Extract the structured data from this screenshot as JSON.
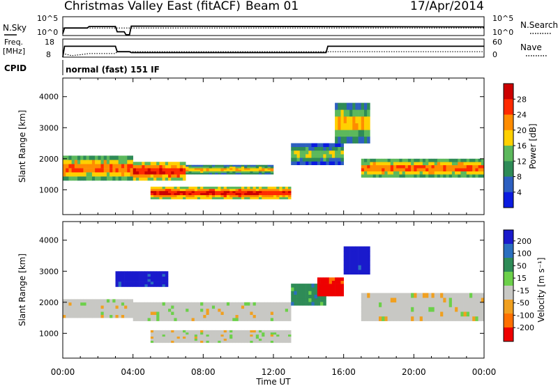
{
  "header": {
    "title": "Christmas Valley East (fitACF)",
    "beam": "Beam 01",
    "date": "17/Apr/2014"
  },
  "noise_panel": {
    "left_label": "N.Sky",
    "right_label": "N.Search",
    "ticks": [
      "10^5",
      "10^0"
    ],
    "right_ticks": [
      "10^5",
      "10^0"
    ]
  },
  "freq_panel": {
    "left_label_1": "Freq.",
    "left_label_2": "[MHz]",
    "left_ticks": [
      "18",
      "8"
    ],
    "right_label": "Nave",
    "right_ticks": [
      "60",
      "0"
    ]
  },
  "cpid": {
    "label": "CPID",
    "mode": "normal (fast) 151 IF"
  },
  "chart_data": [
    {
      "type": "line",
      "name": "noise",
      "series": [
        {
          "name": "N.Sky",
          "x_hours": [
            0,
            0.1,
            1.4,
            1.5,
            3.0,
            3.1,
            3.5,
            3.6,
            3.8,
            3.9,
            24
          ],
          "values": [
            0.5,
            2.0,
            2.0,
            2.4,
            2.4,
            1.0,
            1.0,
            0.2,
            0.2,
            2.5,
            2.3
          ]
        },
        {
          "name": "N.Search",
          "x_hours": [
            0,
            24
          ],
          "values": [
            2.0,
            2.0
          ]
        }
      ],
      "ylim": [
        0,
        5
      ]
    },
    {
      "type": "line",
      "name": "frequency-nave",
      "series": [
        {
          "name": "Freq.",
          "x_hours": [
            0,
            0.1,
            3.0,
            3.1,
            3.8,
            3.9,
            15.0,
            15.1,
            24
          ],
          "values": [
            8,
            14,
            14,
            11,
            11,
            10.5,
            10.5,
            14,
            14
          ]
        },
        {
          "name": "Nave",
          "x_hours": [
            0,
            0.5,
            1.0,
            1.5,
            3.0,
            3.1,
            24
          ],
          "values": [
            12,
            5,
            8,
            12,
            12,
            18,
            18
          ]
        }
      ],
      "ylim_left": [
        8,
        18
      ],
      "ylim_right": [
        0,
        60
      ]
    },
    {
      "type": "heatmap",
      "name": "power",
      "xlabel": "",
      "ylabel": "Slant Range [km]",
      "xlim": [
        0,
        24
      ],
      "ylim": [
        200,
        4600
      ],
      "yticks": [
        "1000",
        "2000",
        "3000",
        "4000"
      ],
      "colorbar": {
        "label": "Power [dB]",
        "ticks": [
          "4",
          "8",
          "12",
          "16",
          "20",
          "24",
          "28"
        ],
        "colors": [
          "#0b1be0",
          "#2d5fc0",
          "#2e8b57",
          "#5cb85c",
          "#ffd000",
          "#ff8c00",
          "#ff2a00",
          "#cc0000"
        ]
      },
      "bands": [
        {
          "x0": 0,
          "x1": 4,
          "r0": 1300,
          "r1": 2100,
          "level": 24
        },
        {
          "x0": 4,
          "x1": 7,
          "r0": 1300,
          "r1": 1900,
          "level": 28
        },
        {
          "x0": 5,
          "x1": 13,
          "r0": 700,
          "r1": 1100,
          "level": 28
        },
        {
          "x0": 7,
          "x1": 12,
          "r0": 1500,
          "r1": 1800,
          "level": 20
        },
        {
          "x0": 13,
          "x1": 16,
          "r0": 1800,
          "r1": 2500,
          "level": 16
        },
        {
          "x0": 15.5,
          "x1": 17.5,
          "r0": 2500,
          "r1": 3800,
          "level": 20
        },
        {
          "x0": 17,
          "x1": 24,
          "r0": 1400,
          "r1": 2000,
          "level": 24
        }
      ]
    },
    {
      "type": "heatmap",
      "name": "velocity",
      "xlabel": "Time UT",
      "ylabel": "Slant Range [km]",
      "xlim": [
        0,
        24
      ],
      "xticks": [
        "00:00",
        "04:00",
        "08:00",
        "12:00",
        "16:00",
        "20:00",
        "00:00"
      ],
      "ylim": [
        200,
        4600
      ],
      "yticks": [
        "1000",
        "2000",
        "3000",
        "4000"
      ],
      "colorbar": {
        "label": "Velocity [m s⁻¹]",
        "ticks": [
          "200",
          "100",
          "50",
          "15",
          "-15",
          "-50",
          "-100",
          "-200"
        ],
        "colors": [
          "#1a1acc",
          "#2a6fbf",
          "#2e8b57",
          "#6cd04a",
          "#c8c8c4",
          "#f0a020",
          "#ff7000",
          "#ee0000"
        ]
      },
      "bands": [
        {
          "x0": 0,
          "x1": 4,
          "r0": 1500,
          "r1": 2100,
          "value": 0
        },
        {
          "x0": 4,
          "x1": 13,
          "r0": 1400,
          "r1": 2000,
          "value": 0
        },
        {
          "x0": 5,
          "x1": 13,
          "r0": 700,
          "r1": 1100,
          "value": 0
        },
        {
          "x0": 3,
          "x1": 6,
          "r0": 2500,
          "r1": 3000,
          "value": 150
        },
        {
          "x0": 13,
          "x1": 15,
          "r0": 1900,
          "r1": 2600,
          "value": 30
        },
        {
          "x0": 14.5,
          "x1": 16,
          "r0": 2200,
          "r1": 2800,
          "value": -150
        },
        {
          "x0": 16,
          "x1": 17.5,
          "r0": 2900,
          "r1": 3800,
          "value": 200
        },
        {
          "x0": 17,
          "x1": 24,
          "r0": 1400,
          "r1": 2300,
          "value": 0
        }
      ]
    }
  ]
}
